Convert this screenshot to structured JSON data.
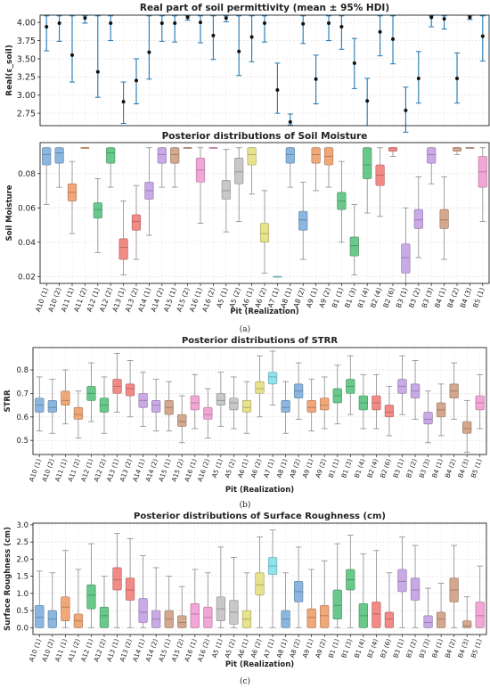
{
  "pits": [
    "A10 (1)",
    "A10 (2)",
    "A11 (1)",
    "A11 (2)",
    "A12 (1)",
    "A12 (2)",
    "A13 (1)",
    "A13 (2)",
    "A14 (1)",
    "A14 (2)",
    "A15 (1)",
    "A15 (2)",
    "A16 (1)",
    "A16 (2)",
    "A5 (1)",
    "A5 (2)",
    "A6 (1)",
    "A6 (2)",
    "A7 (1)",
    "A8 (1)",
    "A8 (2)",
    "A9 (1)",
    "A9 (2)",
    "B1 (1)",
    "B1 (3)",
    "B1 (4)",
    "B2 (4)",
    "B2 (6)",
    "B3 (1)",
    "B3 (2)",
    "B3 (3)",
    "B4 (1)",
    "B4 (2)",
    "B4 (3)",
    "B5 (1)"
  ],
  "colors": [
    "#8ab6df",
    "#8ab6df",
    "#f0a878",
    "#f0a878",
    "#69c98a",
    "#69c98a",
    "#f28a86",
    "#f28a86",
    "#c9a9e6",
    "#c9a9e6",
    "#d4a88e",
    "#d4a88e",
    "#f2a6d6",
    "#f2a6d6",
    "#c8c8c8",
    "#c8c8c8",
    "#e7e28c",
    "#e7e28c",
    "#8fe3ea",
    "#8ab6df",
    "#8ab6df",
    "#f0a878",
    "#f0a878",
    "#69c98a",
    "#69c98a",
    "#69c98a",
    "#f28a86",
    "#f28a86",
    "#c9a9e6",
    "#c9a9e6",
    "#c9a9e6",
    "#d4a88e",
    "#d4a88e",
    "#d4a88e",
    "#f2a6d6"
  ],
  "errorbar_color": "#1f77b4",
  "panel_labels": [
    "(a)",
    "(b)",
    "(c)"
  ],
  "chart_data": [
    {
      "type": "errorbar",
      "title": "Real part of soil permittivity (mean ± 95% HDI)",
      "ylabel": "Real(ε_soil)",
      "ylim": [
        2.58,
        4.1
      ],
      "yticks": [
        2.75,
        3.0,
        3.25,
        3.5,
        3.75,
        4.0
      ],
      "ytick_labels": [
        "2.75",
        "3.00",
        "3.25",
        "3.50",
        "3.75",
        "4.00"
      ],
      "grid": true,
      "mean": [
        3.94,
        3.99,
        3.55,
        4.06,
        3.32,
        3.99,
        2.91,
        3.2,
        3.59,
        3.99,
        3.99,
        4.07,
        4.0,
        3.82,
        4.06,
        3.6,
        3.8,
        3.99,
        3.07,
        2.63,
        3.98,
        3.22,
        3.99,
        3.94,
        3.44,
        2.92,
        3.87,
        3.77,
        2.79,
        3.23,
        4.07,
        4.05,
        3.23,
        4.07,
        3.81
      ],
      "lower": [
        3.61,
        3.74,
        3.18,
        3.99,
        2.97,
        3.75,
        2.61,
        2.88,
        3.22,
        3.74,
        3.73,
        4.03,
        3.72,
        3.49,
        4.01,
        3.27,
        3.46,
        3.73,
        2.75,
        2.59,
        3.71,
        2.88,
        3.75,
        3.63,
        3.09,
        2.58,
        3.54,
        3.43,
        2.49,
        2.89,
        3.94,
        3.91,
        2.89,
        4.04,
        3.47
      ],
      "upper": [
        4.09,
        4.09,
        4.09,
        4.09,
        4.09,
        4.09,
        3.18,
        3.5,
        4.09,
        4.09,
        4.09,
        4.09,
        4.09,
        4.09,
        4.09,
        4.09,
        4.09,
        4.09,
        3.44,
        2.74,
        4.09,
        3.55,
        4.09,
        4.09,
        3.78,
        3.23,
        4.09,
        4.09,
        3.11,
        3.6,
        4.09,
        4.09,
        3.58,
        4.09,
        4.09
      ]
    },
    {
      "type": "box",
      "title": "Posterior distributions of Soil Moisture",
      "ylabel": "Soil Moisture",
      "xlabel": "Pit (Realization)",
      "ylim": [
        0.016,
        0.098
      ],
      "yticks": [
        0.02,
        0.04,
        0.06,
        0.08
      ],
      "ytick_labels": [
        "0.02",
        "0.04",
        "0.06",
        "0.08"
      ],
      "grid": true,
      "boxes": [
        [
          0.062,
          0.085,
          0.091,
          0.095,
          0.095
        ],
        [
          0.072,
          0.086,
          0.092,
          0.095,
          0.095
        ],
        [
          0.045,
          0.064,
          0.069,
          0.074,
          0.087
        ],
        [
          0.095,
          0.095,
          0.095,
          0.095,
          0.095
        ],
        [
          0.034,
          0.054,
          0.059,
          0.063,
          0.077
        ],
        [
          0.072,
          0.086,
          0.092,
          0.095,
          0.095
        ],
        [
          0.021,
          0.03,
          0.037,
          0.042,
          0.064
        ],
        [
          0.03,
          0.047,
          0.052,
          0.056,
          0.073
        ],
        [
          0.044,
          0.065,
          0.07,
          0.075,
          0.095
        ],
        [
          0.072,
          0.086,
          0.091,
          0.095,
          0.095
        ],
        [
          0.072,
          0.086,
          0.091,
          0.095,
          0.095
        ],
        [
          0.095,
          0.095,
          0.095,
          0.095,
          0.095
        ],
        [
          0.051,
          0.075,
          0.082,
          0.089,
          0.095
        ],
        [
          0.095,
          0.095,
          0.095,
          0.095,
          0.095
        ],
        [
          0.046,
          0.065,
          0.07,
          0.076,
          0.094
        ],
        [
          0.052,
          0.074,
          0.081,
          0.089,
          0.095
        ],
        [
          0.068,
          0.085,
          0.091,
          0.095,
          0.095
        ],
        [
          0.022,
          0.04,
          0.045,
          0.051,
          0.07
        ],
        [
          0.02,
          0.02,
          0.02,
          0.02,
          0.02
        ],
        [
          0.072,
          0.086,
          0.091,
          0.095,
          0.095
        ],
        [
          0.03,
          0.047,
          0.053,
          0.058,
          0.075
        ],
        [
          0.07,
          0.086,
          0.091,
          0.095,
          0.095
        ],
        [
          0.072,
          0.085,
          0.09,
          0.095,
          0.095
        ],
        [
          0.04,
          0.059,
          0.064,
          0.069,
          0.087
        ],
        [
          0.021,
          0.032,
          0.038,
          0.043,
          0.062
        ],
        [
          0.057,
          0.077,
          0.085,
          0.095,
          0.095
        ],
        [
          0.055,
          0.073,
          0.079,
          0.085,
          0.095
        ],
        [
          0.09,
          0.093,
          0.095,
          0.095,
          0.095
        ],
        [
          0.016,
          0.022,
          0.031,
          0.039,
          0.06
        ],
        [
          0.031,
          0.048,
          0.053,
          0.059,
          0.078
        ],
        [
          0.074,
          0.086,
          0.091,
          0.095,
          0.095
        ],
        [
          0.03,
          0.048,
          0.053,
          0.059,
          0.078
        ],
        [
          0.091,
          0.093,
          0.095,
          0.095,
          0.095
        ],
        [
          0.095,
          0.095,
          0.095,
          0.095,
          0.095
        ],
        [
          0.052,
          0.072,
          0.081,
          0.09,
          0.095
        ]
      ]
    },
    {
      "type": "box",
      "title": "Posterior distributions of STRR",
      "ylabel": "STRR",
      "xlabel": "Pit (Realization)",
      "ylim": [
        0.44,
        0.895
      ],
      "yticks": [
        0.5,
        0.6,
        0.7,
        0.8
      ],
      "ytick_labels": [
        "0.5",
        "0.6",
        "0.7",
        "0.8"
      ],
      "grid": true,
      "boxes": [
        [
          0.54,
          0.62,
          0.65,
          0.68,
          0.77
        ],
        [
          0.53,
          0.62,
          0.64,
          0.67,
          0.76
        ],
        [
          0.57,
          0.65,
          0.67,
          0.71,
          0.8
        ],
        [
          0.51,
          0.59,
          0.61,
          0.64,
          0.71
        ],
        [
          0.58,
          0.67,
          0.7,
          0.73,
          0.83
        ],
        [
          0.53,
          0.62,
          0.65,
          0.68,
          0.77
        ],
        [
          0.62,
          0.7,
          0.73,
          0.76,
          0.87
        ],
        [
          0.6,
          0.69,
          0.72,
          0.74,
          0.84
        ],
        [
          0.56,
          0.64,
          0.67,
          0.7,
          0.79
        ],
        [
          0.54,
          0.62,
          0.65,
          0.67,
          0.76
        ],
        [
          0.54,
          0.61,
          0.64,
          0.67,
          0.75
        ],
        [
          0.49,
          0.56,
          0.58,
          0.61,
          0.69
        ],
        [
          0.55,
          0.63,
          0.66,
          0.69,
          0.78
        ],
        [
          0.51,
          0.59,
          0.61,
          0.64,
          0.72
        ],
        [
          0.56,
          0.65,
          0.67,
          0.7,
          0.79
        ],
        [
          0.55,
          0.63,
          0.66,
          0.68,
          0.77
        ],
        [
          0.53,
          0.62,
          0.64,
          0.67,
          0.75
        ],
        [
          0.6,
          0.7,
          0.72,
          0.75,
          0.86
        ],
        [
          0.65,
          0.74,
          0.77,
          0.79,
          0.88
        ],
        [
          0.53,
          0.62,
          0.64,
          0.67,
          0.75
        ],
        [
          0.59,
          0.68,
          0.71,
          0.74,
          0.83
        ],
        [
          0.54,
          0.62,
          0.64,
          0.67,
          0.76
        ],
        [
          0.55,
          0.63,
          0.65,
          0.68,
          0.77
        ],
        [
          0.57,
          0.66,
          0.69,
          0.72,
          0.82
        ],
        [
          0.61,
          0.7,
          0.73,
          0.76,
          0.86
        ],
        [
          0.55,
          0.63,
          0.66,
          0.69,
          0.78
        ],
        [
          0.55,
          0.63,
          0.66,
          0.69,
          0.78
        ],
        [
          0.52,
          0.6,
          0.62,
          0.65,
          0.73
        ],
        [
          0.61,
          0.7,
          0.73,
          0.76,
          0.86
        ],
        [
          0.59,
          0.68,
          0.71,
          0.74,
          0.84
        ],
        [
          0.49,
          0.57,
          0.59,
          0.62,
          0.71
        ],
        [
          0.52,
          0.6,
          0.63,
          0.66,
          0.74
        ],
        [
          0.59,
          0.68,
          0.71,
          0.74,
          0.83
        ],
        [
          0.45,
          0.53,
          0.55,
          0.58,
          0.67
        ],
        [
          0.55,
          0.63,
          0.66,
          0.69,
          0.78
        ]
      ]
    },
    {
      "type": "box",
      "title": "Posterior distributions of Surface Roughness (cm)",
      "ylabel": "Surface Roughness (cm)",
      "xlabel": "Pit (Realization)",
      "ylim": [
        -0.2,
        3.05
      ],
      "yticks": [
        0.0,
        0.5,
        1.0,
        1.5,
        2.0,
        2.5,
        3.0
      ],
      "ytick_labels": [
        "0.0",
        "0.5",
        "1.0",
        "1.5",
        "2.0",
        "2.5",
        "3.0"
      ],
      "grid": true,
      "boxes": [
        [
          0.0,
          0.0,
          0.3,
          0.65,
          1.65
        ],
        [
          0.0,
          0.0,
          0.25,
          0.5,
          1.6
        ],
        [
          0.0,
          0.2,
          0.6,
          0.9,
          2.25
        ],
        [
          0.0,
          0.0,
          0.2,
          0.4,
          1.7
        ],
        [
          0.0,
          0.55,
          0.95,
          1.25,
          2.45
        ],
        [
          0.0,
          0.0,
          0.35,
          0.6,
          1.5
        ],
        [
          0.0,
          1.1,
          1.4,
          1.75,
          2.75
        ],
        [
          0.0,
          0.8,
          1.1,
          1.45,
          2.6
        ],
        [
          0.0,
          0.15,
          0.45,
          0.85,
          2.1
        ],
        [
          0.0,
          0.0,
          0.25,
          0.5,
          1.75
        ],
        [
          0.0,
          0.0,
          0.25,
          0.5,
          1.5
        ],
        [
          0.0,
          0.0,
          0.15,
          0.35,
          1.2
        ],
        [
          0.0,
          0.0,
          0.4,
          0.7,
          1.7
        ],
        [
          0.0,
          0.0,
          0.3,
          0.6,
          1.6
        ],
        [
          0.0,
          0.2,
          0.55,
          0.9,
          2.35
        ],
        [
          0.0,
          0.1,
          0.45,
          0.8,
          2.05
        ],
        [
          0.0,
          0.0,
          0.25,
          0.5,
          1.6
        ],
        [
          0.0,
          0.95,
          1.25,
          1.6,
          2.65
        ],
        [
          0.0,
          1.55,
          1.8,
          2.05,
          2.85
        ],
        [
          0.0,
          0.0,
          0.25,
          0.5,
          1.6
        ],
        [
          0.0,
          0.75,
          1.05,
          1.35,
          2.35
        ],
        [
          0.0,
          0.0,
          0.3,
          0.55,
          1.7
        ],
        [
          0.0,
          0.0,
          0.35,
          0.65,
          1.95
        ],
        [
          0.0,
          0.25,
          0.65,
          1.1,
          2.45
        ],
        [
          0.0,
          1.1,
          1.4,
          1.7,
          2.7
        ],
        [
          0.0,
          0.0,
          0.35,
          0.7,
          2.15
        ],
        [
          0.0,
          0.0,
          0.4,
          0.75,
          2.25
        ],
        [
          0.0,
          0.0,
          0.25,
          0.45,
          1.6
        ],
        [
          0.0,
          1.05,
          1.35,
          1.7,
          2.65
        ],
        [
          0.0,
          0.8,
          1.1,
          1.45,
          2.4
        ],
        [
          0.0,
          0.0,
          0.15,
          0.35,
          1.15
        ],
        [
          0.0,
          0.0,
          0.25,
          0.45,
          1.3
        ],
        [
          0.0,
          0.75,
          1.1,
          1.45,
          2.4
        ],
        [
          0.0,
          0.0,
          0.05,
          0.2,
          0.9
        ],
        [
          0.0,
          0.0,
          0.35,
          0.75,
          1.8
        ]
      ]
    }
  ]
}
